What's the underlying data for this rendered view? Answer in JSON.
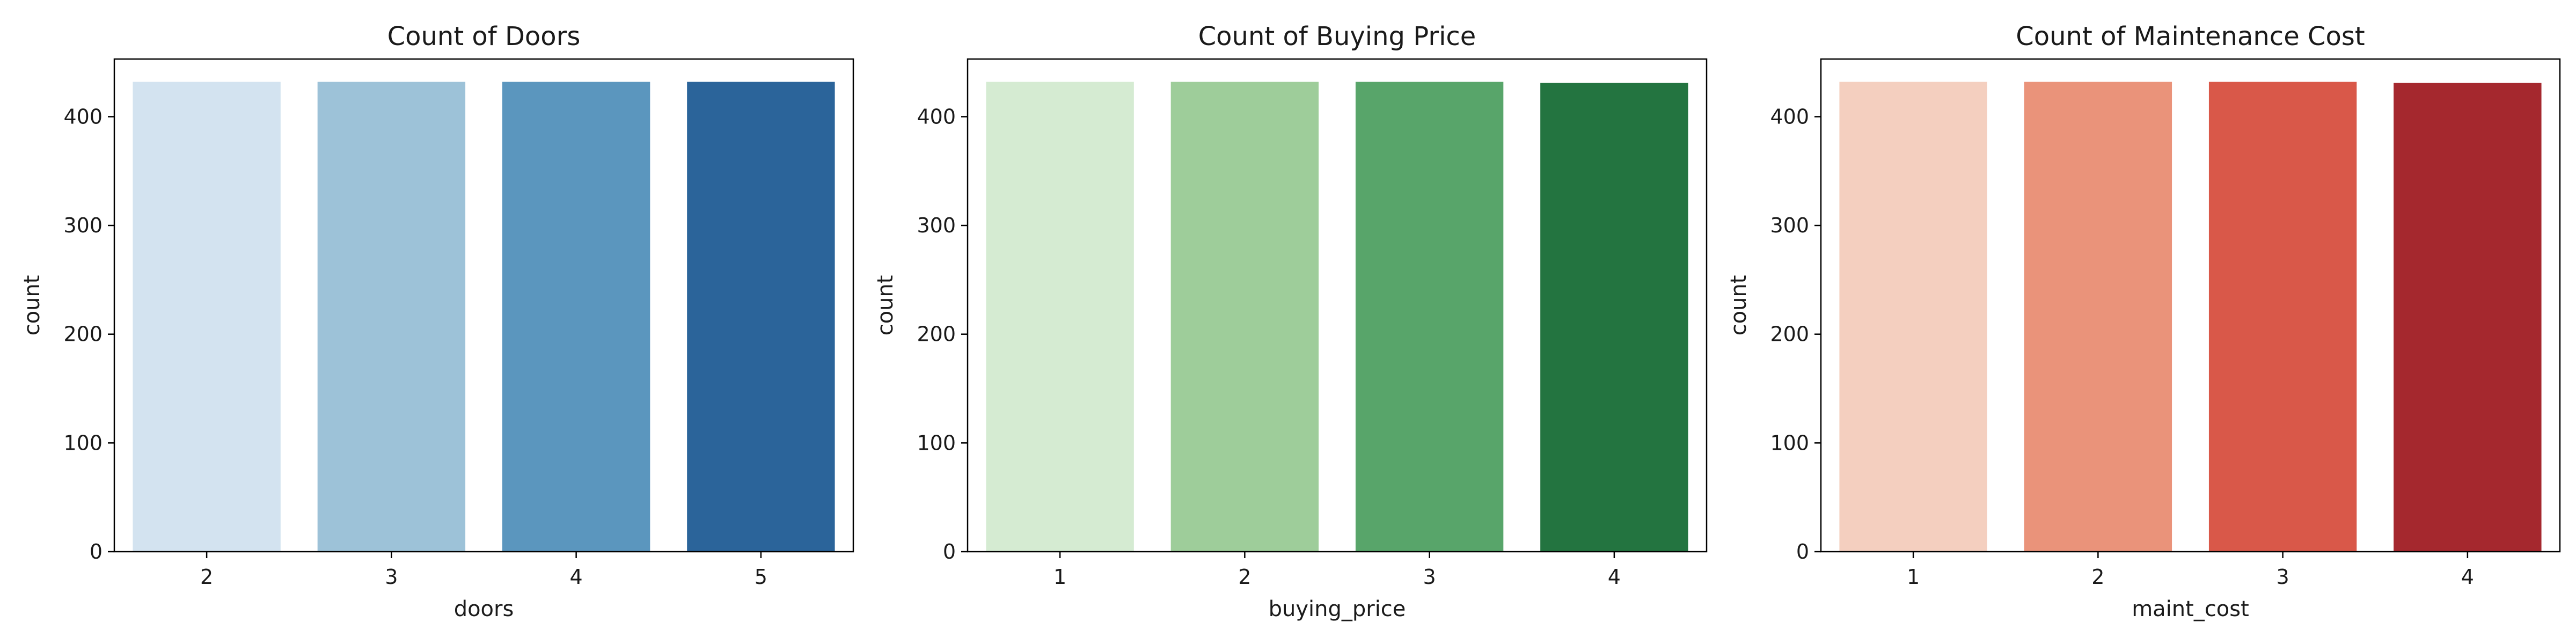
{
  "chart_data": [
    {
      "type": "bar",
      "title": "Count of Doors",
      "xlabel": "doors",
      "ylabel": "count",
      "categories": [
        "2",
        "3",
        "4",
        "5"
      ],
      "values": [
        432,
        432,
        432,
        432
      ],
      "colors": [
        "#d3e3f0",
        "#9dc2d8",
        "#5b96be",
        "#2b649a"
      ],
      "ylim": [
        0,
        453
      ],
      "yticks": [
        "0",
        "100",
        "200",
        "300",
        "400"
      ],
      "grid": false,
      "legend": "none"
    },
    {
      "type": "bar",
      "title": "Count of Buying Price",
      "xlabel": "buying_price",
      "ylabel": "count",
      "categories": [
        "1",
        "2",
        "3",
        "4"
      ],
      "values": [
        432,
        432,
        432,
        431
      ],
      "colors": [
        "#d5ebd2",
        "#9ecd9a",
        "#58a56a",
        "#237440"
      ],
      "ylim": [
        0,
        453
      ],
      "yticks": [
        "0",
        "100",
        "200",
        "300",
        "400"
      ],
      "grid": false,
      "legend": "none"
    },
    {
      "type": "bar",
      "title": "Count of Maintenance Cost",
      "xlabel": "maint_cost",
      "ylabel": "count",
      "categories": [
        "1",
        "2",
        "3",
        "4"
      ],
      "values": [
        432,
        432,
        432,
        431
      ],
      "colors": [
        "#f4cfbf",
        "#ea937a",
        "#d95849",
        "#a5282e"
      ],
      "ylim": [
        0,
        453
      ],
      "yticks": [
        "0",
        "100",
        "200",
        "300",
        "400"
      ],
      "grid": false,
      "legend": "none"
    }
  ]
}
